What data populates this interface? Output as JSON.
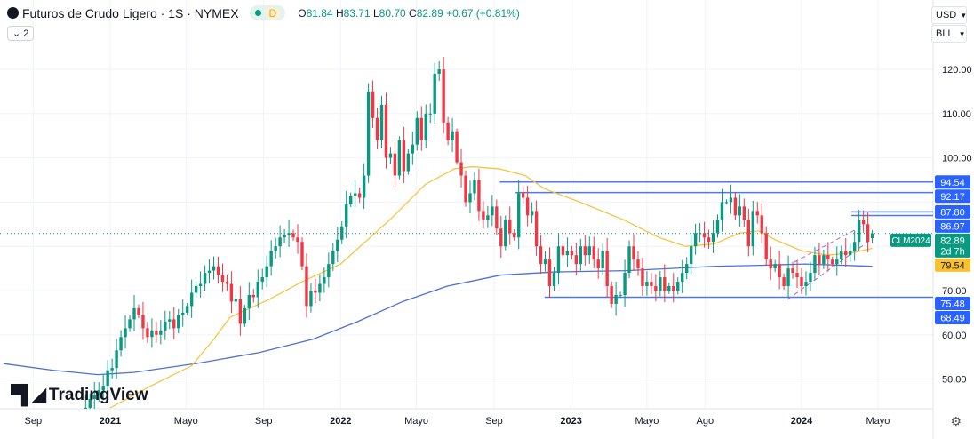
{
  "header": {
    "title": "Futuros de Crudo Ligero · 1S · NYMEX",
    "data_flag": "D",
    "open_label": "O",
    "open": "81.84",
    "high_label": "H",
    "high": "83.71",
    "low_label": "L",
    "low": "80.70",
    "close_label": "C",
    "close": "82.89",
    "change": "+0.67 (+0.81%)"
  },
  "collapse_label": "2",
  "currency": "USD",
  "unit": "BLL",
  "brand": "TradingView",
  "colors": {
    "up": "#089981",
    "down": "#f23645",
    "ma_fast": "#f5c542",
    "ma_slow": "#4f6fd6",
    "hline": "#4f78e0",
    "badge_blue": "#2962ff",
    "badge_yellow": "#f7c12f",
    "badge_green": "#089981"
  },
  "chart_data": {
    "type": "candlestick",
    "interval": "weekly",
    "first_week": "2020-11-16",
    "closes": [
      42,
      43.5,
      45.5,
      46.5,
      47.5,
      48.5,
      52,
      52.5,
      56.5,
      59.5,
      61.5,
      63.5,
      66,
      64.5,
      61.5,
      59.5,
      61,
      60,
      61,
      63,
      63.5,
      61.5,
      64.5,
      65,
      66.5,
      69.5,
      71,
      71.5,
      74,
      74.5,
      75.5,
      73.5,
      72,
      71.5,
      67.5,
      68,
      62.5,
      66,
      69,
      68.5,
      72,
      73,
      75.5,
      79,
      80,
      82,
      82.5,
      83,
      82,
      81,
      75.5,
      66.5,
      70,
      69.5,
      71.5,
      73,
      76,
      79,
      81.5,
      84.5,
      89.5,
      91.5,
      92,
      91,
      96,
      115,
      109,
      104,
      112,
      100,
      101,
      96,
      104,
      97,
      101,
      103,
      109,
      104,
      110,
      110,
      119,
      120,
      108,
      104,
      106,
      99,
      96,
      90,
      92,
      95,
      88,
      86,
      87,
      89,
      84,
      80,
      86,
      83,
      82,
      92,
      91,
      87,
      88,
      80,
      76,
      77,
      71,
      74,
      80,
      78,
      79,
      78,
      76,
      80,
      78,
      80,
      77,
      75,
      79,
      71,
      67,
      69,
      69,
      74,
      80,
      77,
      75,
      71,
      72,
      71,
      70,
      73,
      70,
      71,
      70,
      72,
      74,
      76,
      80,
      83,
      83,
      82,
      81,
      83,
      86,
      90,
      90,
      91,
      87,
      89,
      86,
      80,
      88,
      87,
      83,
      77,
      75,
      76,
      73,
      71,
      75,
      74,
      73,
      71,
      72,
      74,
      78,
      76,
      78,
      77,
      76,
      77,
      79,
      78,
      79,
      81,
      86,
      85,
      81,
      82.89
    ],
    "last": {
      "open": 81.84,
      "high": 83.71,
      "low": 80.7,
      "close": 82.89
    },
    "ma_fast": [
      [
        "2021-01-01",
        43.5
      ],
      [
        "2021-03-07",
        48.5
      ],
      [
        "2021-05-10",
        53
      ],
      [
        "2021-06-14",
        59
      ],
      [
        "2021-07-10",
        64
      ],
      [
        "2021-09-10",
        68
      ],
      [
        "2021-11-01",
        72
      ],
      [
        "2022-01-01",
        76
      ],
      [
        "2022-03-20",
        86
      ],
      [
        "2022-05-15",
        94
      ],
      [
        "2022-06-30",
        97.5
      ],
      [
        "2022-07-28",
        98
      ],
      [
        "2022-09-10",
        97.5
      ],
      [
        "2022-10-20",
        96
      ],
      [
        "2022-11-20",
        93
      ],
      [
        "2023-01-15",
        90
      ],
      [
        "2023-03-25",
        86
      ],
      [
        "2023-05-20",
        82
      ],
      [
        "2023-07-01",
        80
      ],
      [
        "2023-08-15",
        80.5
      ],
      [
        "2023-09-25",
        83
      ],
      [
        "2023-10-25",
        83.5
      ],
      [
        "2023-11-20",
        81.5
      ],
      [
        "2024-01-01",
        79
      ],
      [
        "2024-02-10",
        78
      ],
      [
        "2024-03-20",
        78.5
      ],
      [
        "2024-04-22",
        79.54
      ]
    ],
    "ma_slow": [
      [
        "2020-07-16",
        53.5
      ],
      [
        "2020-10-02",
        52
      ],
      [
        "2020-12-12",
        51
      ],
      [
        "2021-02-07",
        51.5
      ],
      [
        "2021-05-17",
        53.5
      ],
      [
        "2021-08-25",
        56
      ],
      [
        "2021-11-18",
        59
      ],
      [
        "2022-01-28",
        63
      ],
      [
        "2022-04-09",
        67.5
      ],
      [
        "2022-06-19",
        71
      ],
      [
        "2022-09-12",
        73.5
      ],
      [
        "2022-12-06",
        74.2
      ],
      [
        "2023-03-30",
        74.5
      ],
      [
        "2023-08-19",
        75.5
      ],
      [
        "2023-10-28",
        75.7
      ],
      [
        "2024-01-06",
        76
      ],
      [
        "2024-04-22",
        75.48
      ]
    ],
    "hlines": [
      {
        "value": 94.54,
        "from": "2022-09-10"
      },
      {
        "value": 92.17,
        "from": "2022-10-05"
      },
      {
        "value": 87.8,
        "from": "2024-03-20"
      },
      {
        "value": 86.97,
        "from": "2024-03-20"
      },
      {
        "value": 68.49,
        "from": "2022-11-20"
      }
    ],
    "channel": [
      [
        [
          "2023-12-20",
          76.4
        ],
        [
          "2024-04-05",
          84.5
        ]
      ],
      [
        [
          "2023-12-10",
          68
        ],
        [
          "2024-04-15",
          81
        ]
      ]
    ],
    "y_ticks": [
      "120.00",
      "110.00",
      "100.00",
      "70.00",
      "60.00",
      "50.00"
    ],
    "y_tick_values": [
      120,
      110,
      100,
      70,
      60,
      50
    ],
    "x_ticks": [
      {
        "label": "Sep",
        "date": "2020-09-01"
      },
      {
        "label": "2021",
        "date": "2021-01-01",
        "bold": true
      },
      {
        "label": "Mayo",
        "date": "2021-05-01"
      },
      {
        "label": "Sep",
        "date": "2021-09-01"
      },
      {
        "label": "2022",
        "date": "2022-01-01",
        "bold": true
      },
      {
        "label": "Mayo",
        "date": "2022-05-01"
      },
      {
        "label": "Sep",
        "date": "2022-09-01"
      },
      {
        "label": "2023",
        "date": "2023-01-01",
        "bold": true
      },
      {
        "label": "Mayo",
        "date": "2023-05-01"
      },
      {
        "label": "Ago",
        "date": "2023-08-01"
      },
      {
        "label": "2024",
        "date": "2024-01-01",
        "bold": true
      },
      {
        "label": "Mayo",
        "date": "2024-05-01"
      }
    ],
    "price_badges": [
      {
        "text": "94.54",
        "value": 94.54,
        "color": "blue"
      },
      {
        "text": "92.17",
        "value": 92.17,
        "color": "blue"
      },
      {
        "text": "87.80",
        "value": 87.8,
        "color": "blue"
      },
      {
        "text": "86.97",
        "value": 86.97,
        "color": "blue"
      },
      {
        "text": "82.89",
        "value": 82.89,
        "color": "green",
        "sub": "2d 7h",
        "tag": "CLM2024"
      },
      {
        "text": "79.54",
        "value": 79.54,
        "color": "yellow"
      },
      {
        "text": "75.48",
        "value": 75.48,
        "color": "blue"
      },
      {
        "text": "68.49",
        "value": 68.49,
        "color": "blue"
      }
    ]
  }
}
